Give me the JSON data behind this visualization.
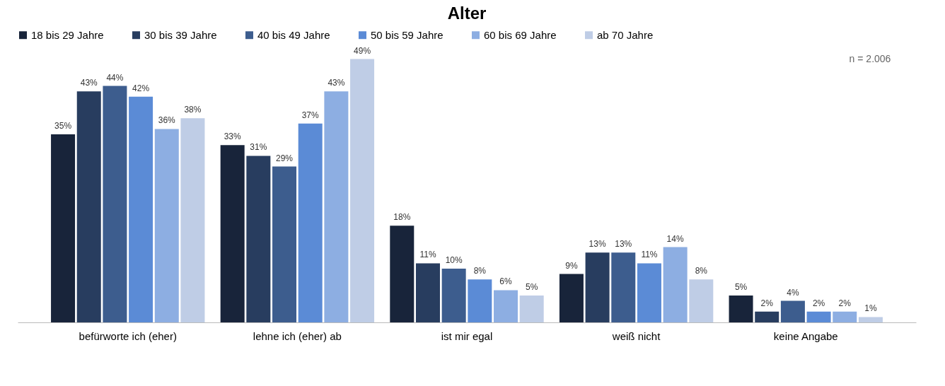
{
  "chart_data": {
    "type": "bar",
    "title": "Alter",
    "categories": [
      "befürworte ich (eher)",
      "lehne ich (eher) ab",
      "ist mir egal",
      "weiß nicht",
      "keine Angabe"
    ],
    "series": [
      {
        "name": "18 bis 29 Jahre",
        "color": "#18243a",
        "values": [
          35,
          33,
          18,
          9,
          5
        ],
        "value_labels": [
          "35%",
          "33%",
          "18%",
          "9%",
          "5%"
        ]
      },
      {
        "name": "30 bis 39 Jahre",
        "color": "#283d5f",
        "values": [
          43,
          31,
          11,
          13,
          2
        ],
        "value_labels": [
          "43%",
          "31%",
          "11%",
          "13%",
          "2%"
        ]
      },
      {
        "name": "40 bis 49 Jahre",
        "color": "#3d5d8e",
        "values": [
          44,
          29,
          10,
          13,
          4
        ],
        "value_labels": [
          "44%",
          "29%",
          "10%",
          "13%",
          "4%"
        ]
      },
      {
        "name": "50 bis 59 Jahre",
        "color": "#5b8bd6",
        "values": [
          42,
          37,
          8,
          11,
          2
        ],
        "value_labels": [
          "42%",
          "37%",
          "8%",
          "11%",
          "2%"
        ]
      },
      {
        "name": "60 bis 69 Jahre",
        "color": "#8daee2",
        "values": [
          36,
          43,
          6,
          14,
          2
        ],
        "value_labels": [
          "36%",
          "43%",
          "6%",
          "14%",
          "2%"
        ]
      },
      {
        "name": "ab 70 Jahre",
        "color": "#bfcde6",
        "values": [
          38,
          49,
          5,
          8,
          1
        ],
        "value_labels": [
          "38%",
          "49%",
          "5%",
          "8%",
          "1%"
        ]
      }
    ],
    "annotations": [
      "n = 2.006"
    ],
    "legend": "top",
    "grid": false
  }
}
